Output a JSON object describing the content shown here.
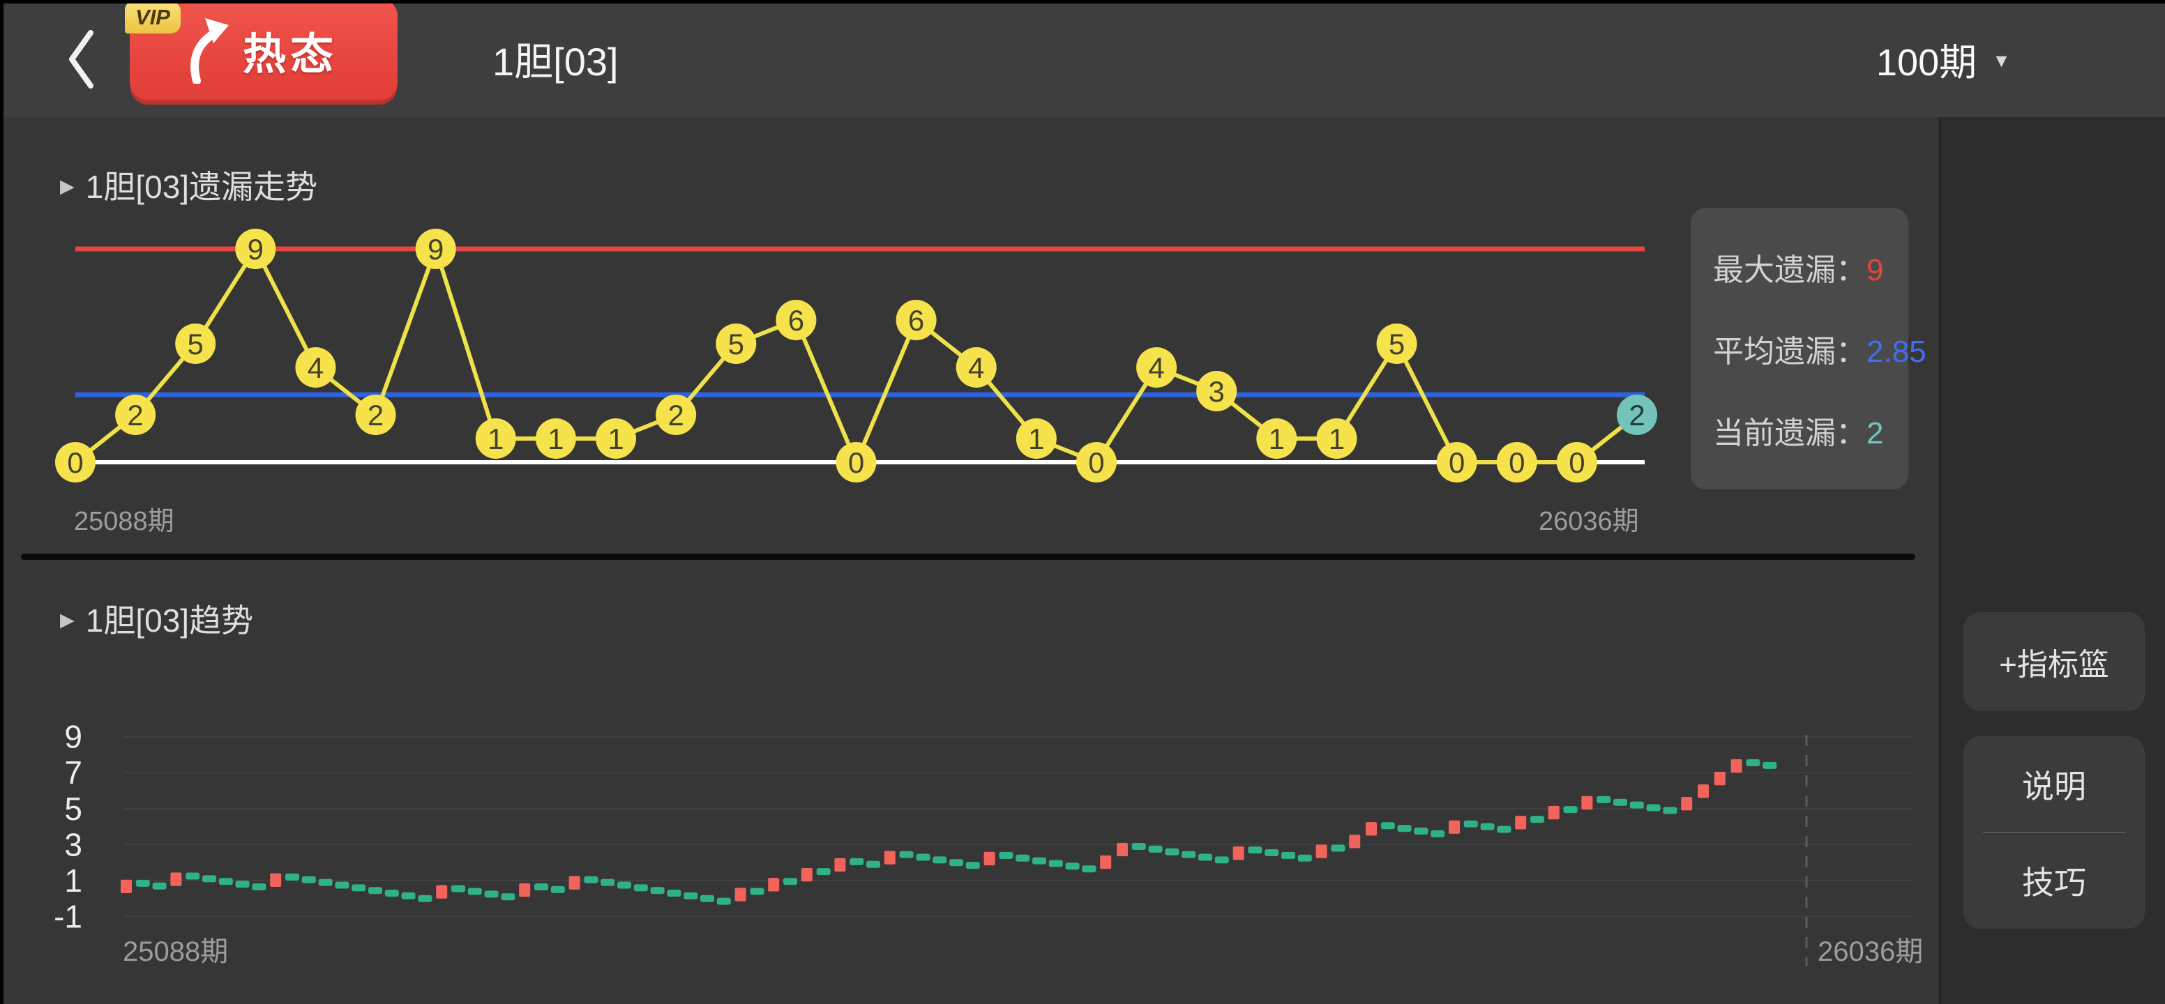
{
  "header": {
    "back_icon": "chevron-left",
    "badge": {
      "vip_tag": "VIP",
      "label": "热态",
      "arrow_icon": "up-arrow"
    },
    "title": "1胆[03]",
    "period": {
      "label": "100期",
      "caret_icon": "▼"
    }
  },
  "sections": {
    "miss": {
      "collapse_icon": "▶",
      "title": "1胆[03]遗漏走势"
    },
    "trend": {
      "collapse_icon": "▶",
      "title": "1胆[03]趋势"
    }
  },
  "stats": {
    "rows": [
      {
        "label": "最大遗漏：",
        "value": "9",
        "color": "#e2473f"
      },
      {
        "label": "平均遗漏：",
        "value": "2.85",
        "color": "#3f6ef2"
      },
      {
        "label": "当前遗漏：",
        "value": "2",
        "color": "#6fc8bb"
      }
    ]
  },
  "sidebar": {
    "add_basket": "+指标篮",
    "explain": "说明",
    "tips": "技巧"
  },
  "chart_data": [
    {
      "id": "miss-line",
      "type": "line",
      "title": "1胆[03]遗漏走势",
      "values": [
        0,
        2,
        5,
        9,
        4,
        2,
        9,
        1,
        1,
        1,
        2,
        5,
        6,
        0,
        6,
        4,
        1,
        0,
        4,
        3,
        1,
        1,
        5,
        0,
        0,
        0,
        2
      ],
      "current_index": 26,
      "current_value": 2,
      "max_line": 9,
      "avg_line": 2.85,
      "base_line": 0,
      "ylim": [
        0,
        9
      ],
      "x_start": "25088期",
      "x_end": "26036期",
      "node_color": "#f6e34c",
      "current_node_color": "#74c3ba",
      "node_text_color": "#45412a",
      "line_color": "#efe14a",
      "max_color": "#e2473f",
      "avg_color": "#2d63e1",
      "base_color": "#ffffff",
      "legend": {
        "max": "最大遗漏：9",
        "avg": "平均遗漏：2.85",
        "cur": "当前遗漏：2"
      }
    },
    {
      "id": "trend-steps",
      "type": "candlestick",
      "yticks": [
        9,
        7,
        5,
        3,
        1,
        -1
      ],
      "ylim": [
        -1,
        9
      ],
      "x_start": "25088期",
      "x_end": "26036期",
      "grid": true,
      "up_color": "#f2635c",
      "miss_color": "#2fb287",
      "grid_color": "#414141",
      "tick_color": "#ececec",
      "dash_line_color": "#5c5c5c",
      "marks": [
        [
          "r",
          0.3,
          1.05
        ],
        [
          "g",
          0.85
        ],
        [
          "g",
          0.7
        ],
        [
          "r",
          0.7,
          1.45
        ],
        [
          "g",
          1.25
        ],
        [
          "g",
          1.1
        ],
        [
          "g",
          0.95
        ],
        [
          "g",
          0.8
        ],
        [
          "g",
          0.65
        ],
        [
          "r",
          0.65,
          1.4
        ],
        [
          "g",
          1.2
        ],
        [
          "g",
          1.05
        ],
        [
          "g",
          0.9
        ],
        [
          "g",
          0.75
        ],
        [
          "g",
          0.6
        ],
        [
          "g",
          0.45
        ],
        [
          "g",
          0.3
        ],
        [
          "g",
          0.15
        ],
        [
          "g",
          0.0
        ],
        [
          "r",
          0.0,
          0.75
        ],
        [
          "g",
          0.55
        ],
        [
          "g",
          0.4
        ],
        [
          "g",
          0.25
        ],
        [
          "g",
          0.1
        ],
        [
          "r",
          0.1,
          0.85
        ],
        [
          "g",
          0.65
        ],
        [
          "g",
          0.5
        ],
        [
          "r",
          0.5,
          1.25
        ],
        [
          "g",
          1.05
        ],
        [
          "g",
          0.9
        ],
        [
          "g",
          0.75
        ],
        [
          "g",
          0.6
        ],
        [
          "g",
          0.45
        ],
        [
          "g",
          0.3
        ],
        [
          "g",
          0.15
        ],
        [
          "g",
          0.0
        ],
        [
          "g",
          -0.15
        ],
        [
          "r",
          -0.15,
          0.6
        ],
        [
          "g",
          0.4
        ],
        [
          "r",
          0.4,
          1.15
        ],
        [
          "g",
          0.95
        ],
        [
          "r",
          0.95,
          1.7
        ],
        [
          "g",
          1.5
        ],
        [
          "r",
          1.5,
          2.25
        ],
        [
          "g",
          2.05
        ],
        [
          "g",
          1.9
        ],
        [
          "r",
          1.9,
          2.65
        ],
        [
          "g",
          2.45
        ],
        [
          "g",
          2.3
        ],
        [
          "g",
          2.15
        ],
        [
          "g",
          2.0
        ],
        [
          "g",
          1.85
        ],
        [
          "r",
          1.85,
          2.6
        ],
        [
          "g",
          2.4
        ],
        [
          "g",
          2.25
        ],
        [
          "g",
          2.1
        ],
        [
          "g",
          1.95
        ],
        [
          "g",
          1.8
        ],
        [
          "g",
          1.65
        ],
        [
          "r",
          1.65,
          2.4
        ],
        [
          "r",
          2.35,
          3.1
        ],
        [
          "g",
          2.9
        ],
        [
          "g",
          2.75
        ],
        [
          "g",
          2.6
        ],
        [
          "g",
          2.45
        ],
        [
          "g",
          2.3
        ],
        [
          "g",
          2.15
        ],
        [
          "r",
          2.15,
          2.9
        ],
        [
          "g",
          2.7
        ],
        [
          "g",
          2.55
        ],
        [
          "g",
          2.4
        ],
        [
          "g",
          2.25
        ],
        [
          "r",
          2.25,
          3.0
        ],
        [
          "g",
          2.8
        ],
        [
          "r",
          2.8,
          3.55
        ],
        [
          "r",
          3.5,
          4.25
        ],
        [
          "g",
          4.05
        ],
        [
          "g",
          3.9
        ],
        [
          "g",
          3.75
        ],
        [
          "g",
          3.6
        ],
        [
          "r",
          3.6,
          4.35
        ],
        [
          "g",
          4.15
        ],
        [
          "g",
          4.0
        ],
        [
          "g",
          3.85
        ],
        [
          "r",
          3.85,
          4.6
        ],
        [
          "g",
          4.4
        ],
        [
          "r",
          4.4,
          5.15
        ],
        [
          "g",
          4.95
        ],
        [
          "r",
          4.95,
          5.7
        ],
        [
          "g",
          5.5
        ],
        [
          "g",
          5.35
        ],
        [
          "g",
          5.2
        ],
        [
          "g",
          5.05
        ],
        [
          "g",
          4.9
        ],
        [
          "r",
          4.9,
          5.65
        ],
        [
          "r",
          5.6,
          6.35
        ],
        [
          "r",
          6.3,
          7.05
        ],
        [
          "r",
          7.0,
          7.75
        ],
        [
          "g",
          7.55
        ],
        [
          "g",
          7.4
        ]
      ]
    }
  ]
}
